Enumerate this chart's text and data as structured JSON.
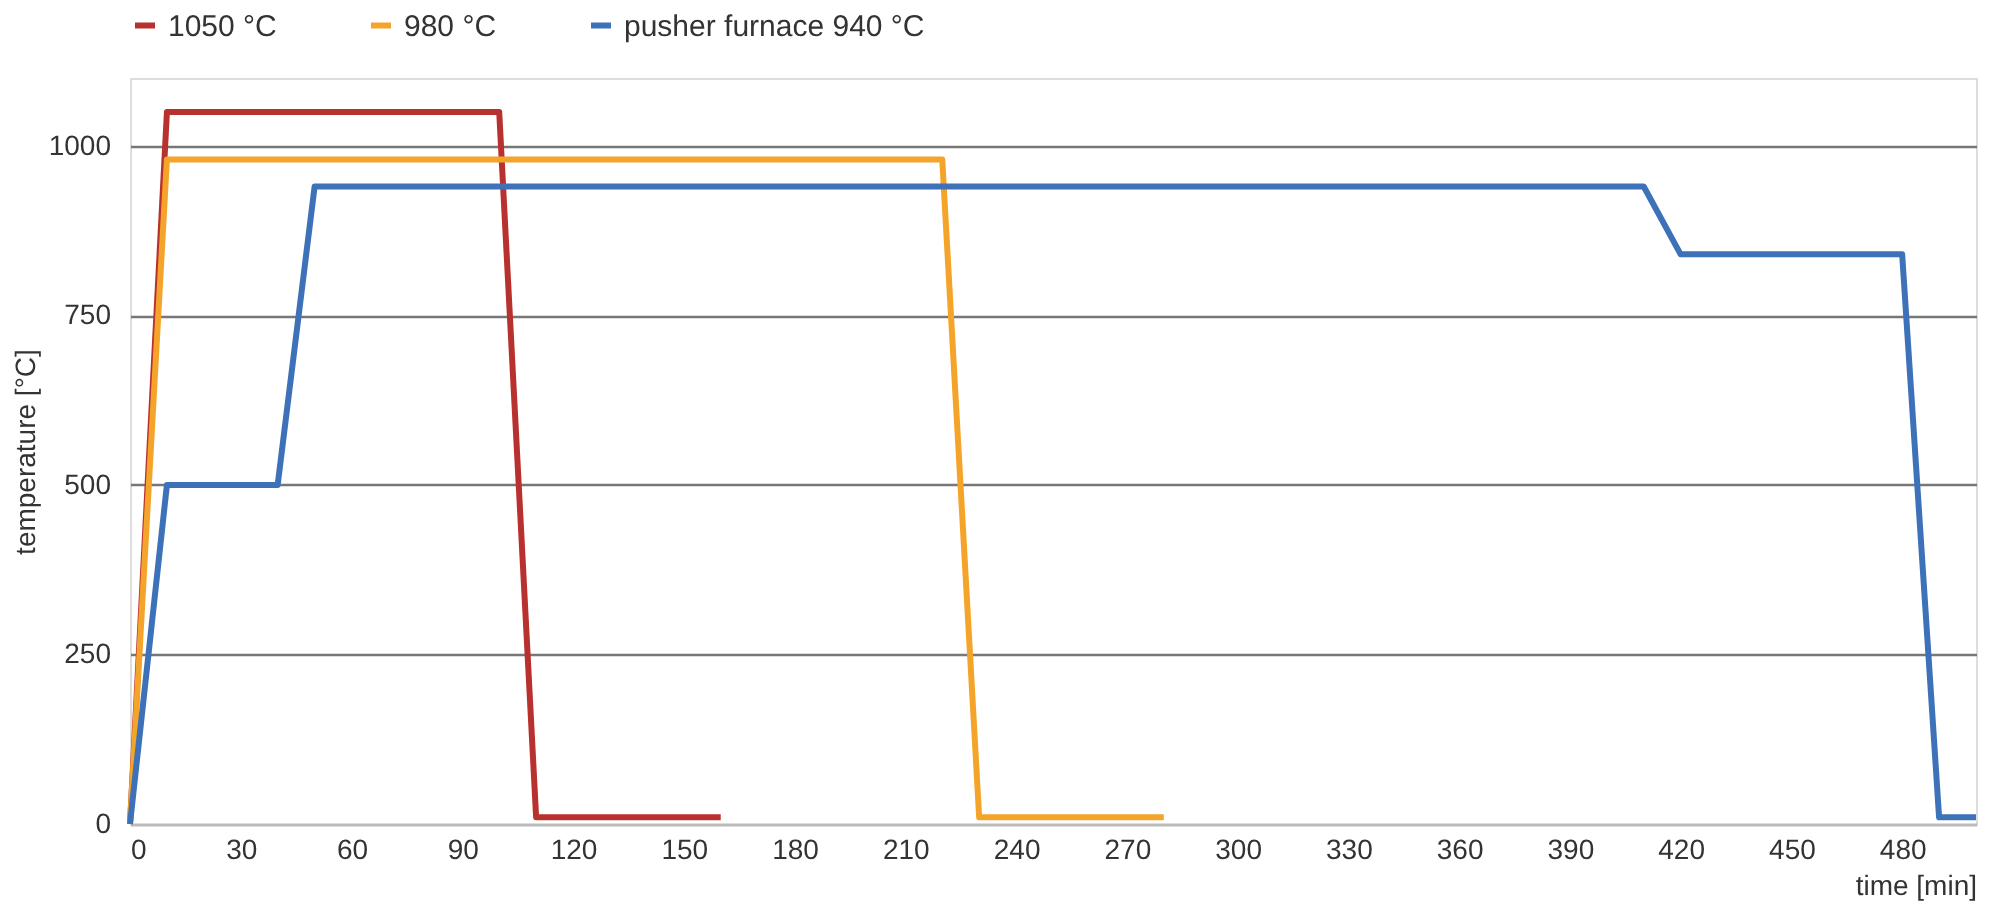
{
  "chart_data": {
    "type": "line",
    "xlabel": "time [min]",
    "ylabel": "temperature [°C]",
    "xlim": [
      0,
      500
    ],
    "xticks": [
      0,
      30,
      60,
      90,
      120,
      150,
      180,
      210,
      240,
      270,
      300,
      330,
      360,
      390,
      420,
      450,
      480
    ],
    "ylim": [
      0,
      1100
    ],
    "yticks": [
      0,
      250,
      500,
      750,
      1000
    ],
    "grid": "y",
    "legend": "top",
    "marker": "none",
    "line_style": "solid",
    "series": [
      {
        "name": "1050 °C",
        "color": "#b8312f",
        "x": [
          0,
          10,
          100,
          110,
          160
        ],
        "values": [
          0,
          1050,
          1050,
          10,
          10
        ]
      },
      {
        "name": "980 °C",
        "color": "#f5a42a",
        "x": [
          0,
          10,
          220,
          230,
          280
        ],
        "values": [
          0,
          980,
          980,
          10,
          10
        ]
      },
      {
        "name": "pusher furnace 940 °C",
        "color": "#3d72b8",
        "x": [
          0,
          10,
          40,
          50,
          410,
          420,
          480,
          490,
          500
        ],
        "values": [
          0,
          500,
          500,
          940,
          940,
          840,
          840,
          10,
          10
        ]
      }
    ]
  }
}
